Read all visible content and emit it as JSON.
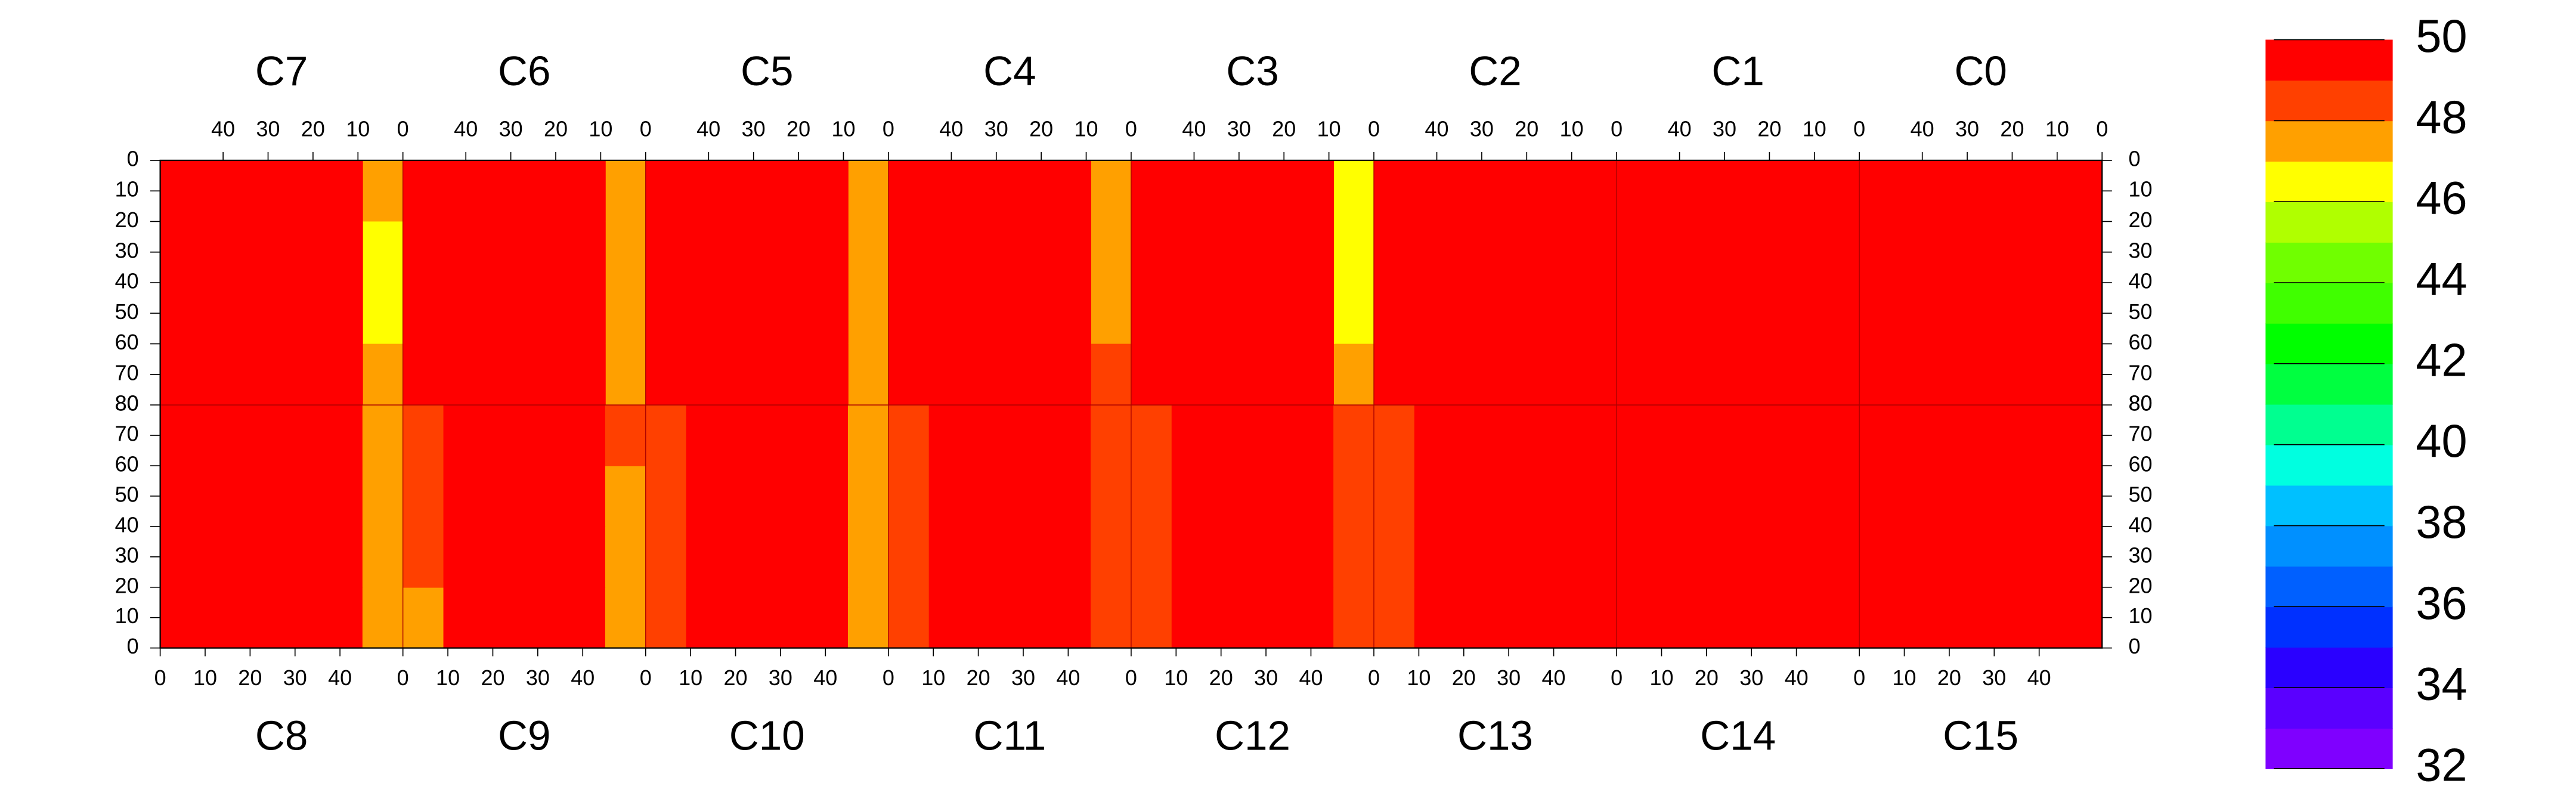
{
  "chart_data": {
    "type": "heatmap",
    "top_chips": [
      "C7",
      "C6",
      "C5",
      "C4",
      "C3",
      "C2",
      "C1",
      "C0"
    ],
    "bottom_chips": [
      "C8",
      "C9",
      "C10",
      "C11",
      "C12",
      "C13",
      "C14",
      "C15"
    ],
    "xlim": [
      0,
      54
    ],
    "top_xticks": [
      40,
      30,
      20,
      10,
      0
    ],
    "bottom_xticks": [
      0,
      10,
      20,
      30,
      40
    ],
    "ylim": [
      0,
      80
    ],
    "yticks": [
      0,
      10,
      20,
      30,
      40,
      50,
      60,
      70,
      80
    ],
    "x_bins": [
      0,
      9,
      18,
      27,
      36,
      45,
      54
    ],
    "y_bins": [
      0,
      20,
      40,
      60,
      80
    ],
    "zlim": [
      32,
      50
    ],
    "zticks": [
      32,
      34,
      36,
      38,
      40,
      42,
      44,
      46,
      48,
      50
    ],
    "colors": [
      "#7f00ff",
      "#5a00ff",
      "#2a00ff",
      "#0030ff",
      "#0060ff",
      "#0090ff",
      "#00c0ff",
      "#00ffe0",
      "#00ff90",
      "#00ff40",
      "#00ff00",
      "#40ff00",
      "#70ff00",
      "#b0ff00",
      "#ffff00",
      "#ffa000",
      "#ff4000",
      "#ff0000"
    ],
    "top_values": [
      [
        [
          47.2,
          49.4,
          49.5,
          49.5,
          49.6,
          49.7
        ],
        [
          46.8,
          49.3,
          49.4,
          49.5,
          49.6,
          49.6
        ],
        [
          46.9,
          49.3,
          49.4,
          49.5,
          49.5,
          49.6
        ],
        [
          47.4,
          49.4,
          49.5,
          49.5,
          49.6,
          49.7
        ]
      ],
      [
        [
          47.8,
          49.3,
          49.4,
          49.5,
          49.5,
          49.4
        ],
        [
          47.6,
          49.3,
          49.4,
          49.4,
          49.5,
          49.4
        ],
        [
          47.7,
          49.3,
          49.4,
          49.5,
          49.5,
          49.5
        ],
        [
          47.9,
          49.4,
          49.5,
          49.5,
          49.6,
          49.5
        ]
      ],
      [
        [
          47.5,
          49.3,
          49.4,
          49.5,
          49.5,
          49.3
        ],
        [
          47.3,
          49.2,
          49.4,
          49.4,
          49.5,
          49.3
        ],
        [
          47.4,
          49.3,
          49.4,
          49.5,
          49.5,
          49.4
        ],
        [
          47.6,
          49.4,
          49.5,
          49.5,
          49.6,
          49.4
        ]
      ],
      [
        [
          47.9,
          49.4,
          49.5,
          49.5,
          49.4,
          49.2
        ],
        [
          47.8,
          49.3,
          49.4,
          49.5,
          49.4,
          49.2
        ],
        [
          47.9,
          49.4,
          49.5,
          49.5,
          49.5,
          49.3
        ],
        [
          48.1,
          49.4,
          49.5,
          49.6,
          49.5,
          49.3
        ]
      ],
      [
        [
          46.9,
          49.3,
          49.4,
          49.5,
          49.5,
          49.4
        ],
        [
          46.7,
          49.3,
          49.4,
          49.4,
          49.5,
          49.4
        ],
        [
          46.8,
          49.3,
          49.4,
          49.5,
          49.5,
          49.4
        ],
        [
          47.2,
          49.4,
          49.5,
          49.5,
          49.6,
          49.4
        ]
      ],
      [
        [
          50,
          50,
          50,
          49.3,
          49.2,
          49.1
        ],
        [
          50,
          50,
          50,
          49.3,
          49.2,
          49.1
        ],
        [
          50,
          50,
          50,
          49.3,
          49.2,
          49.2
        ],
        [
          50,
          50,
          50,
          49.4,
          49.3,
          49.2
        ]
      ],
      [
        [
          49.6,
          49.8,
          49.8,
          49.7,
          49.8,
          49.9
        ],
        [
          49.6,
          49.8,
          49.7,
          49.7,
          49.8,
          49.9
        ],
        [
          49.6,
          49.8,
          49.8,
          49.7,
          49.8,
          49.9
        ],
        [
          49.7,
          49.8,
          49.8,
          49.8,
          49.8,
          49.9
        ]
      ],
      [
        [
          49.6,
          49.7,
          49.7,
          49.7,
          49.7,
          49.8
        ],
        [
          49.6,
          49.7,
          49.6,
          49.7,
          49.7,
          49.8
        ],
        [
          49.6,
          49.7,
          49.7,
          49.7,
          49.7,
          49.8
        ],
        [
          49.7,
          49.7,
          49.7,
          49.8,
          49.8,
          49.8
        ]
      ]
    ],
    "bottom_values": [
      [
        [
          49.2,
          49.5,
          49.5,
          49.5,
          49.5,
          47.5
        ],
        [
          49.2,
          49.5,
          49.5,
          49.4,
          49.5,
          47.6
        ],
        [
          49.3,
          49.5,
          49.5,
          49.5,
          49.5,
          47.7
        ],
        [
          49.3,
          49.5,
          49.6,
          49.5,
          49.6,
          47.9
        ]
      ],
      [
        [
          47.9,
          49.4,
          49.5,
          49.5,
          49.3,
          47.8
        ],
        [
          48.0,
          49.4,
          49.5,
          49.4,
          49.3,
          47.7
        ],
        [
          48.0,
          49.5,
          49.5,
          49.5,
          49.3,
          47.9
        ],
        [
          48.2,
          49.5,
          49.6,
          49.5,
          49.4,
          48.1
        ]
      ],
      [
        [
          48.0,
          49.4,
          49.5,
          49.5,
          49.4,
          47.2
        ],
        [
          48.0,
          49.4,
          49.4,
          49.5,
          49.4,
          47.1
        ],
        [
          48.1,
          49.5,
          49.5,
          49.5,
          49.4,
          47.3
        ],
        [
          48.2,
          49.5,
          49.5,
          49.6,
          49.5,
          47.5
        ]
      ],
      [
        [
          48.1,
          49.6,
          49.7,
          49.7,
          49.7,
          48.2
        ],
        [
          48.0,
          49.6,
          49.6,
          49.7,
          49.7,
          48.1
        ],
        [
          48.1,
          49.6,
          49.7,
          49.7,
          49.7,
          48.3
        ],
        [
          48.3,
          49.7,
          49.7,
          49.7,
          49.7,
          48.4
        ]
      ],
      [
        [
          48.1,
          49.6,
          49.7,
          49.0,
          49.7,
          48.5
        ],
        [
          48.0,
          49.6,
          49.6,
          49.0,
          49.6,
          48.4
        ],
        [
          48.1,
          49.6,
          49.7,
          49.1,
          49.7,
          48.5
        ],
        [
          48.3,
          49.7,
          49.7,
          49.2,
          49.7,
          48.7
        ]
      ],
      [
        [
          48.6,
          49.5,
          49.6,
          50,
          50,
          50
        ],
        [
          48.5,
          49.5,
          49.6,
          50,
          50,
          50
        ],
        [
          48.4,
          49.4,
          49.5,
          50,
          50,
          50
        ],
        [
          48.6,
          49.5,
          49.6,
          50,
          50,
          50
        ]
      ],
      [
        [
          49.9,
          50,
          50,
          50,
          49.9,
          49.8
        ],
        [
          49.9,
          50,
          50,
          50,
          49.9,
          49.8
        ],
        [
          49.9,
          50,
          50,
          50,
          50,
          49.8
        ],
        [
          49.9,
          50,
          50,
          50,
          50,
          49.9
        ]
      ],
      [
        [
          49.8,
          50,
          50,
          50,
          50,
          49.9
        ],
        [
          49.8,
          50,
          50,
          50,
          50,
          49.9
        ],
        [
          49.8,
          50,
          50,
          50,
          50,
          49.9
        ],
        [
          49.8,
          50,
          50,
          50,
          50,
          49.9
        ]
      ]
    ]
  }
}
